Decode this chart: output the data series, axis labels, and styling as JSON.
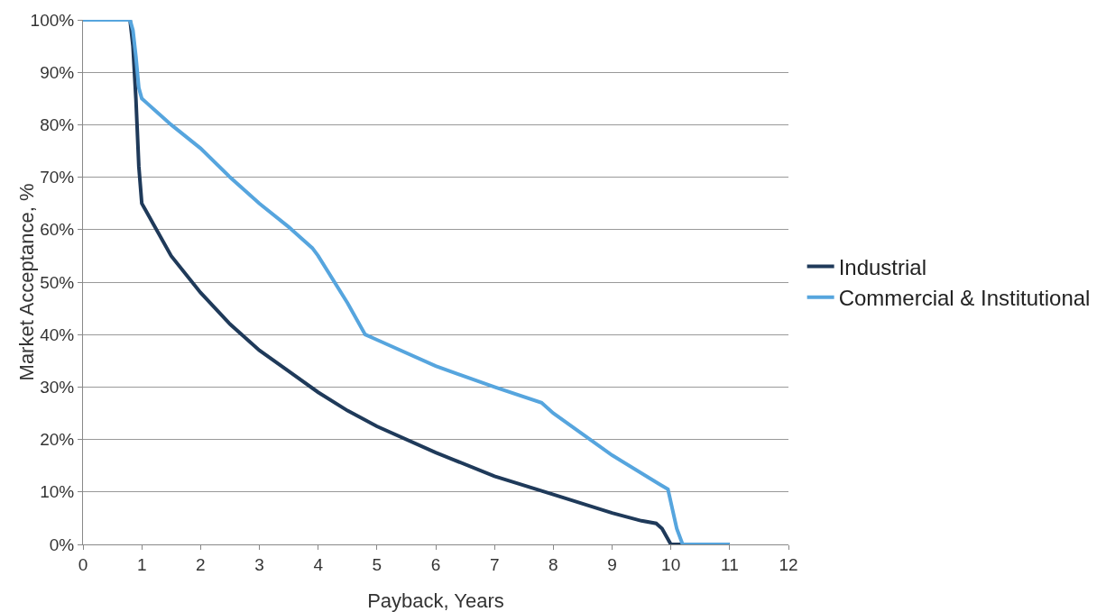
{
  "chart_data": {
    "type": "line",
    "xlabel": "Payback, Years",
    "ylabel": "Market Acceptance, %",
    "xlim": [
      0,
      12
    ],
    "xticks": [
      0,
      1,
      2,
      3,
      4,
      5,
      6,
      7,
      8,
      9,
      10,
      11,
      12
    ],
    "ylim": [
      0,
      100
    ],
    "yticks": [
      {
        "value": 0,
        "label": "0%"
      },
      {
        "value": 10,
        "label": "10%"
      },
      {
        "value": 20,
        "label": "20%"
      },
      {
        "value": 30,
        "label": "30%"
      },
      {
        "value": 40,
        "label": "40%"
      },
      {
        "value": 50,
        "label": "50%"
      },
      {
        "value": 60,
        "label": "60%"
      },
      {
        "value": 70,
        "label": "70%"
      },
      {
        "value": 80,
        "label": "80%"
      },
      {
        "value": 90,
        "label": "90%"
      },
      {
        "value": 100,
        "label": "100%"
      }
    ],
    "grid": "y",
    "legend": "right",
    "marker": "none",
    "line_style": "solid",
    "series": [
      {
        "name": "Industrial",
        "color": "#1f3a5a",
        "x": [
          0,
          0.8,
          0.85,
          0.9,
          0.95,
          1,
          1.1,
          1.2,
          1.5,
          2,
          2.5,
          3,
          3.5,
          4,
          4.5,
          5,
          6,
          7,
          8,
          9,
          9.5,
          9.75,
          9.85,
          10,
          10.5,
          11
        ],
        "values": [
          100,
          100,
          95,
          85,
          72,
          65,
          63,
          61,
          55,
          48,
          42,
          37,
          33,
          29,
          25.5,
          22.5,
          17.5,
          13,
          9.5,
          6,
          4.5,
          4,
          3,
          0,
          0,
          0
        ]
      },
      {
        "name": "Commercial & Institutional",
        "color": "#56a5de",
        "x": [
          0,
          0.5,
          0.8,
          0.85,
          0.9,
          0.95,
          1,
          1.1,
          1.2,
          1.5,
          2,
          2.5,
          3,
          3.5,
          3.9,
          4,
          4.5,
          4.8,
          5,
          6,
          7,
          7.8,
          8,
          9,
          9.8,
          9.95,
          10.1,
          10.2,
          10.5,
          11
        ],
        "values": [
          100,
          100,
          100,
          98,
          93,
          87,
          85,
          84,
          83,
          80,
          75.5,
          70,
          65,
          60.5,
          56.5,
          55,
          46,
          40,
          39,
          34,
          30,
          27,
          25,
          17,
          11.5,
          10.5,
          3,
          0,
          0,
          0
        ]
      }
    ]
  }
}
